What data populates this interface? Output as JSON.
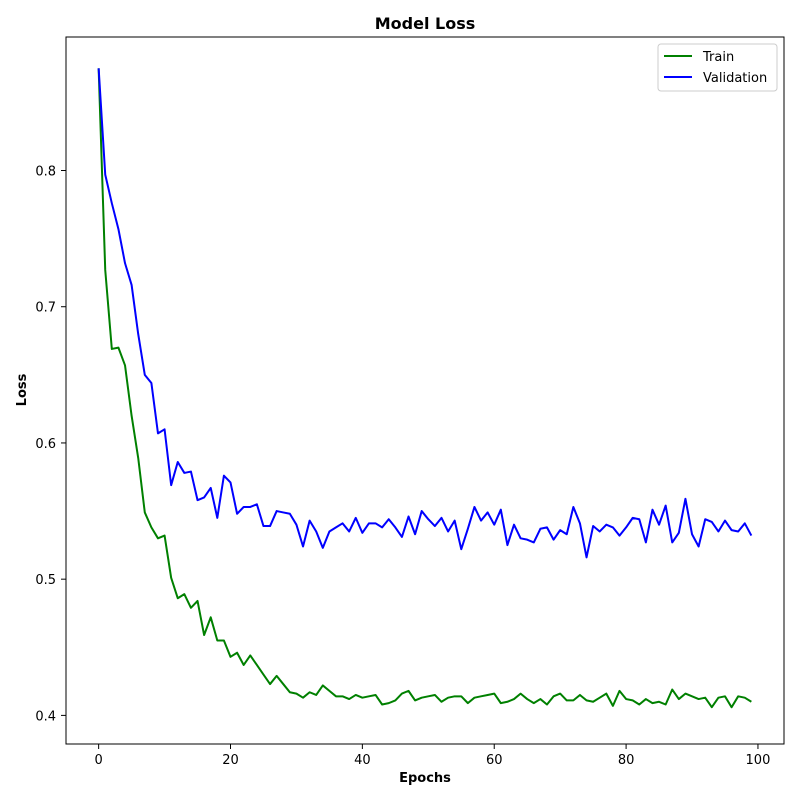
{
  "chart_data": {
    "type": "line",
    "title": "Model Loss",
    "xlabel": "Epochs",
    "ylabel": "Loss",
    "xlim": [
      -4.95,
      103.95
    ],
    "ylim": [
      0.379,
      0.898
    ],
    "xticks": [
      0,
      20,
      40,
      60,
      80,
      100
    ],
    "yticks": [
      0.4,
      0.5,
      0.6,
      0.7,
      0.8
    ],
    "ytick_labels": [
      "0.4",
      "0.5",
      "0.6",
      "0.7",
      "0.8"
    ],
    "grid": false,
    "legend_position": "top-right",
    "x": [
      0,
      1,
      2,
      3,
      4,
      5,
      6,
      7,
      8,
      9,
      10,
      11,
      12,
      13,
      14,
      15,
      16,
      17,
      18,
      19,
      20,
      21,
      22,
      23,
      24,
      25,
      26,
      27,
      28,
      29,
      30,
      31,
      32,
      33,
      34,
      35,
      36,
      37,
      38,
      39,
      40,
      41,
      42,
      43,
      44,
      45,
      46,
      47,
      48,
      49,
      50,
      51,
      52,
      53,
      54,
      55,
      56,
      57,
      58,
      59,
      60,
      61,
      62,
      63,
      64,
      65,
      66,
      67,
      68,
      69,
      70,
      71,
      72,
      73,
      74,
      75,
      76,
      77,
      78,
      79,
      80,
      81,
      82,
      83,
      84,
      85,
      86,
      87,
      88,
      89,
      90,
      91,
      92,
      93,
      94,
      95,
      96,
      97,
      98,
      99
    ],
    "series": [
      {
        "name": "Train",
        "color": "#008000",
        "values": [
          0.875,
          0.727,
          0.669,
          0.67,
          0.657,
          0.62,
          0.589,
          0.549,
          0.538,
          0.53,
          0.532,
          0.501,
          0.486,
          0.489,
          0.479,
          0.484,
          0.459,
          0.472,
          0.455,
          0.455,
          0.443,
          0.446,
          0.437,
          0.444,
          0.437,
          0.43,
          0.423,
          0.429,
          0.423,
          0.417,
          0.416,
          0.413,
          0.417,
          0.415,
          0.422,
          0.418,
          0.414,
          0.414,
          0.412,
          0.415,
          0.413,
          0.414,
          0.415,
          0.408,
          0.409,
          0.411,
          0.416,
          0.418,
          0.411,
          0.413,
          0.414,
          0.415,
          0.41,
          0.413,
          0.414,
          0.414,
          0.409,
          0.413,
          0.414,
          0.415,
          0.416,
          0.409,
          0.41,
          0.412,
          0.416,
          0.412,
          0.409,
          0.412,
          0.408,
          0.414,
          0.416,
          0.411,
          0.411,
          0.415,
          0.411,
          0.41,
          0.413,
          0.416,
          0.407,
          0.418,
          0.412,
          0.411,
          0.408,
          0.412,
          0.409,
          0.41,
          0.408,
          0.419,
          0.412,
          0.416,
          0.414,
          0.412,
          0.413,
          0.406,
          0.413,
          0.414,
          0.406,
          0.414,
          0.413,
          0.41
        ]
      },
      {
        "name": "Validation",
        "color": "#0000ff",
        "values": [
          0.875,
          0.797,
          0.776,
          0.757,
          0.732,
          0.716,
          0.68,
          0.65,
          0.644,
          0.607,
          0.61,
          0.569,
          0.586,
          0.578,
          0.579,
          0.558,
          0.56,
          0.567,
          0.545,
          0.576,
          0.571,
          0.548,
          0.553,
          0.553,
          0.555,
          0.539,
          0.539,
          0.55,
          0.549,
          0.548,
          0.54,
          0.524,
          0.543,
          0.535,
          0.523,
          0.535,
          0.538,
          0.541,
          0.535,
          0.545,
          0.534,
          0.541,
          0.541,
          0.538,
          0.544,
          0.538,
          0.531,
          0.546,
          0.533,
          0.55,
          0.544,
          0.539,
          0.545,
          0.535,
          0.543,
          0.522,
          0.537,
          0.553,
          0.543,
          0.549,
          0.54,
          0.551,
          0.525,
          0.54,
          0.53,
          0.529,
          0.527,
          0.537,
          0.538,
          0.529,
          0.536,
          0.533,
          0.553,
          0.541,
          0.516,
          0.539,
          0.535,
          0.54,
          0.538,
          0.532,
          0.538,
          0.545,
          0.544,
          0.527,
          0.551,
          0.54,
          0.554,
          0.527,
          0.534,
          0.559,
          0.533,
          0.524,
          0.544,
          0.542,
          0.535,
          0.543,
          0.536,
          0.535,
          0.541,
          0.532
        ]
      }
    ]
  }
}
